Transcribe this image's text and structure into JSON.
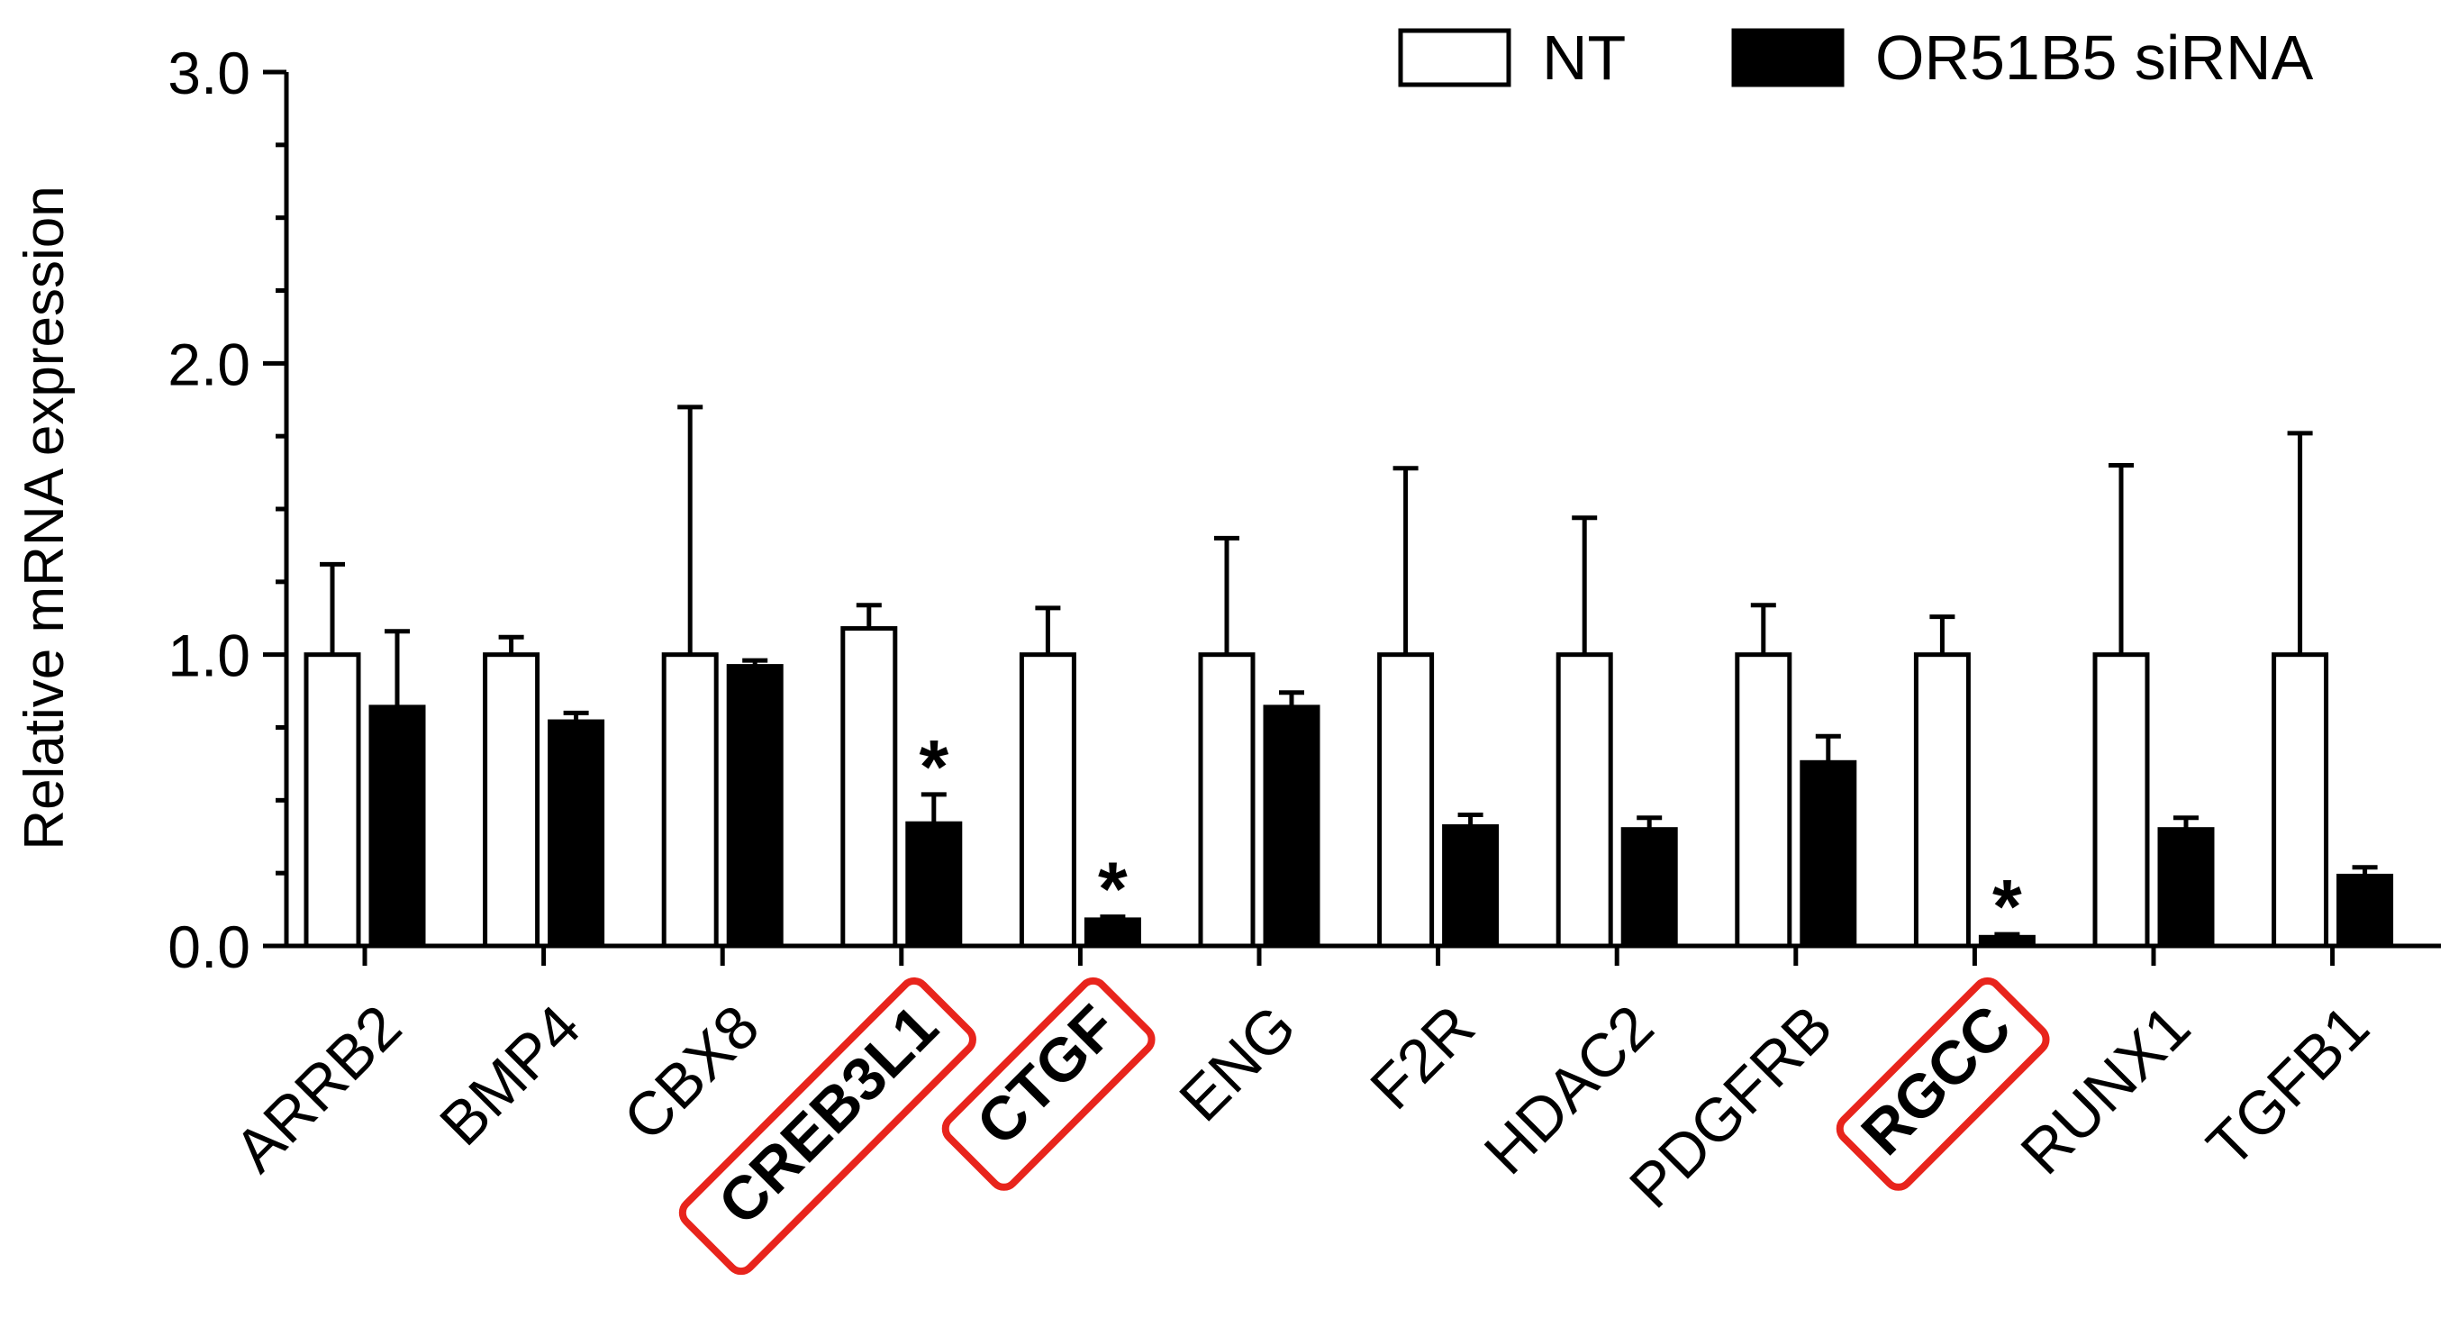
{
  "chart_data": {
    "type": "bar",
    "title": "",
    "xlabel": "",
    "ylabel": "Relative mRNA expression",
    "ylim": [
      0,
      3.0
    ],
    "yticks": [
      "0.0",
      "1.0",
      "2.0",
      "3.0"
    ],
    "ytick_values": [
      0,
      1,
      2,
      3
    ],
    "minor_ticks_per_major": 4,
    "legend_position": "top-right",
    "categories": [
      "ARRB2",
      "BMP4",
      "CBX8",
      "CREB3L1",
      "CTGF",
      "ENG",
      "F2R",
      "HDAC2",
      "PDGFRB",
      "RGCC",
      "RUNX1",
      "TGFB1"
    ],
    "highlighted": [
      "CREB3L1",
      "CTGF",
      "RGCC"
    ],
    "series": [
      {
        "name": "NT",
        "fill": "#ffffff",
        "values": [
          1.0,
          1.0,
          1.0,
          1.09,
          1.0,
          1.0,
          1.0,
          1.0,
          1.0,
          1.0,
          1.0,
          1.0
        ],
        "error_upper": [
          1.31,
          1.06,
          1.85,
          1.17,
          1.16,
          1.4,
          1.64,
          1.47,
          1.17,
          1.13,
          1.65,
          1.76
        ]
      },
      {
        "name": "OR51B5 siRNA",
        "fill": "#000000",
        "values": [
          0.82,
          0.77,
          0.96,
          0.42,
          0.09,
          0.82,
          0.41,
          0.4,
          0.63,
          0.03,
          0.4,
          0.24
        ],
        "error_upper": [
          1.08,
          0.8,
          0.98,
          0.52,
          0.1,
          0.87,
          0.45,
          0.44,
          0.72,
          0.04,
          0.44,
          0.27
        ]
      }
    ],
    "significance_marks": [
      {
        "category": "CREB3L1",
        "series": "OR51B5 siRNA",
        "label": "*"
      },
      {
        "category": "CTGF",
        "series": "OR51B5 siRNA",
        "label": "*"
      },
      {
        "category": "RGCC",
        "series": "OR51B5 siRNA",
        "label": "*"
      }
    ],
    "colors": {
      "axis": "#000000",
      "highlight": "#e8241c"
    }
  }
}
